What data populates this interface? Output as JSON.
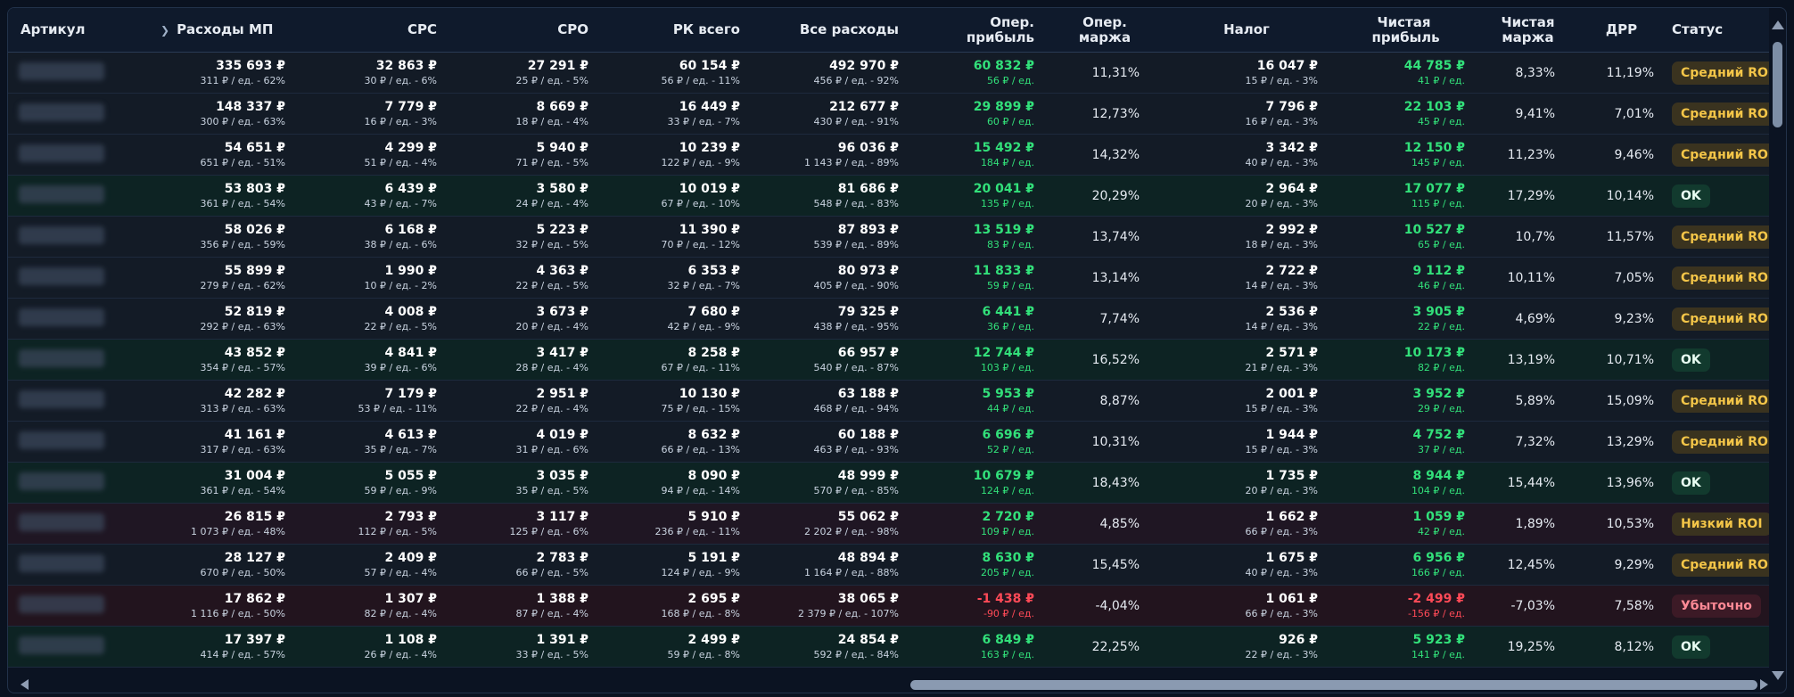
{
  "headers": {
    "sku": "Артикул",
    "mp_expenses": "Расходы МП",
    "cpc": "CPC",
    "cpo": "CPO",
    "rk_total": "РК всего",
    "all_expenses": "Все расходы",
    "op_profit": "Опер. прибыль",
    "op_margin": "Опер. маржа",
    "tax": "Налог",
    "net_profit": "Чистая прибыль",
    "net_margin": "Чистая маржа",
    "drr": "ДРР",
    "status": "Статус"
  },
  "rows": [
    {
      "mp": "335 693 ₽",
      "mp_s": "311 ₽ / ед. - 62%",
      "cpc": "32 863 ₽",
      "cpc_s": "30 ₽ / ед. - 6%",
      "cpo": "27 291 ₽",
      "cpo_s": "25 ₽ / ед. - 5%",
      "rk": "60 154 ₽",
      "rk_s": "56 ₽ / ед. - 11%",
      "all": "492 970 ₽",
      "all_s": "456 ₽ / ед. - 92%",
      "op": "60 832 ₽",
      "op_s": "56 ₽ / ед.",
      "opm": "11,31%",
      "tax": "16 047 ₽",
      "tax_s": "15 ₽ / ед. - 3%",
      "net": "44 785 ₽",
      "net_s": "41 ₽ / ед.",
      "netm": "8,33%",
      "drr": "11,19%",
      "status": "Средний ROI"
    },
    {
      "mp": "148 337 ₽",
      "mp_s": "300 ₽ / ед. - 63%",
      "cpc": "7 779 ₽",
      "cpc_s": "16 ₽ / ед. - 3%",
      "cpo": "8 669 ₽",
      "cpo_s": "18 ₽ / ед. - 4%",
      "rk": "16 449 ₽",
      "rk_s": "33 ₽ / ед. - 7%",
      "all": "212 677 ₽",
      "all_s": "430 ₽ / ед. - 91%",
      "op": "29 899 ₽",
      "op_s": "60 ₽ / ед.",
      "opm": "12,73%",
      "tax": "7 796 ₽",
      "tax_s": "16 ₽ / ед. - 3%",
      "net": "22 103 ₽",
      "net_s": "45 ₽ / ед.",
      "netm": "9,41%",
      "drr": "7,01%",
      "status": "Средний ROI"
    },
    {
      "mp": "54 651 ₽",
      "mp_s": "651 ₽ / ед. - 51%",
      "cpc": "4 299 ₽",
      "cpc_s": "51 ₽ / ед. - 4%",
      "cpo": "5 940 ₽",
      "cpo_s": "71 ₽ / ед. - 5%",
      "rk": "10 239 ₽",
      "rk_s": "122 ₽ / ед. - 9%",
      "all": "96 036 ₽",
      "all_s": "1 143 ₽ / ед. - 89%",
      "op": "15 492 ₽",
      "op_s": "184 ₽ / ед.",
      "opm": "14,32%",
      "tax": "3 342 ₽",
      "tax_s": "40 ₽ / ед. - 3%",
      "net": "12 150 ₽",
      "net_s": "145 ₽ / ед.",
      "netm": "11,23%",
      "drr": "9,46%",
      "status": "Средний ROI"
    },
    {
      "mp": "53 803 ₽",
      "mp_s": "361 ₽ / ед. - 54%",
      "cpc": "6 439 ₽",
      "cpc_s": "43 ₽ / ед. - 7%",
      "cpo": "3 580 ₽",
      "cpo_s": "24 ₽ / ед. - 4%",
      "rk": "10 019 ₽",
      "rk_s": "67 ₽ / ед. - 10%",
      "all": "81 686 ₽",
      "all_s": "548 ₽ / ед. - 83%",
      "op": "20 041 ₽",
      "op_s": "135 ₽ / ед.",
      "opm": "20,29%",
      "tax": "2 964 ₽",
      "tax_s": "20 ₽ / ед. - 3%",
      "net": "17 077 ₽",
      "net_s": "115 ₽ / ед.",
      "netm": "17,29%",
      "drr": "10,14%",
      "status": "OK"
    },
    {
      "mp": "58 026 ₽",
      "mp_s": "356 ₽ / ед. - 59%",
      "cpc": "6 168 ₽",
      "cpc_s": "38 ₽ / ед. - 6%",
      "cpo": "5 223 ₽",
      "cpo_s": "32 ₽ / ед. - 5%",
      "rk": "11 390 ₽",
      "rk_s": "70 ₽ / ед. - 12%",
      "all": "87 893 ₽",
      "all_s": "539 ₽ / ед. - 89%",
      "op": "13 519 ₽",
      "op_s": "83 ₽ / ед.",
      "opm": "13,74%",
      "tax": "2 992 ₽",
      "tax_s": "18 ₽ / ед. - 3%",
      "net": "10 527 ₽",
      "net_s": "65 ₽ / ед.",
      "netm": "10,7%",
      "drr": "11,57%",
      "status": "Средний ROI"
    },
    {
      "mp": "55 899 ₽",
      "mp_s": "279 ₽ / ед. - 62%",
      "cpc": "1 990 ₽",
      "cpc_s": "10 ₽ / ед. - 2%",
      "cpo": "4 363 ₽",
      "cpo_s": "22 ₽ / ед. - 5%",
      "rk": "6 353 ₽",
      "rk_s": "32 ₽ / ед. - 7%",
      "all": "80 973 ₽",
      "all_s": "405 ₽ / ед. - 90%",
      "op": "11 833 ₽",
      "op_s": "59 ₽ / ед.",
      "opm": "13,14%",
      "tax": "2 722 ₽",
      "tax_s": "14 ₽ / ед. - 3%",
      "net": "9 112 ₽",
      "net_s": "46 ₽ / ед.",
      "netm": "10,11%",
      "drr": "7,05%",
      "status": "Средний ROI"
    },
    {
      "mp": "52 819 ₽",
      "mp_s": "292 ₽ / ед. - 63%",
      "cpc": "4 008 ₽",
      "cpc_s": "22 ₽ / ед. - 5%",
      "cpo": "3 673 ₽",
      "cpo_s": "20 ₽ / ед. - 4%",
      "rk": "7 680 ₽",
      "rk_s": "42 ₽ / ед. - 9%",
      "all": "79 325 ₽",
      "all_s": "438 ₽ / ед. - 95%",
      "op": "6 441 ₽",
      "op_s": "36 ₽ / ед.",
      "opm": "7,74%",
      "tax": "2 536 ₽",
      "tax_s": "14 ₽ / ед. - 3%",
      "net": "3 905 ₽",
      "net_s": "22 ₽ / ед.",
      "netm": "4,69%",
      "drr": "9,23%",
      "status": "Средний ROI"
    },
    {
      "mp": "43 852 ₽",
      "mp_s": "354 ₽ / ед. - 57%",
      "cpc": "4 841 ₽",
      "cpc_s": "39 ₽ / ед. - 6%",
      "cpo": "3 417 ₽",
      "cpo_s": "28 ₽ / ед. - 4%",
      "rk": "8 258 ₽",
      "rk_s": "67 ₽ / ед. - 11%",
      "all": "66 957 ₽",
      "all_s": "540 ₽ / ед. - 87%",
      "op": "12 744 ₽",
      "op_s": "103 ₽ / ед.",
      "opm": "16,52%",
      "tax": "2 571 ₽",
      "tax_s": "21 ₽ / ед. - 3%",
      "net": "10 173 ₽",
      "net_s": "82 ₽ / ед.",
      "netm": "13,19%",
      "drr": "10,71%",
      "status": "OK"
    },
    {
      "mp": "42 282 ₽",
      "mp_s": "313 ₽ / ед. - 63%",
      "cpc": "7 179 ₽",
      "cpc_s": "53 ₽ / ед. - 11%",
      "cpo": "2 951 ₽",
      "cpo_s": "22 ₽ / ед. - 4%",
      "rk": "10 130 ₽",
      "rk_s": "75 ₽ / ед. - 15%",
      "all": "63 188 ₽",
      "all_s": "468 ₽ / ед. - 94%",
      "op": "5 953 ₽",
      "op_s": "44 ₽ / ед.",
      "opm": "8,87%",
      "tax": "2 001 ₽",
      "tax_s": "15 ₽ / ед. - 3%",
      "net": "3 952 ₽",
      "net_s": "29 ₽ / ед.",
      "netm": "5,89%",
      "drr": "15,09%",
      "status": "Средний ROI"
    },
    {
      "mp": "41 161 ₽",
      "mp_s": "317 ₽ / ед. - 63%",
      "cpc": "4 613 ₽",
      "cpc_s": "35 ₽ / ед. - 7%",
      "cpo": "4 019 ₽",
      "cpo_s": "31 ₽ / ед. - 6%",
      "rk": "8 632 ₽",
      "rk_s": "66 ₽ / ед. - 13%",
      "all": "60 188 ₽",
      "all_s": "463 ₽ / ед. - 93%",
      "op": "6 696 ₽",
      "op_s": "52 ₽ / ед.",
      "opm": "10,31%",
      "tax": "1 944 ₽",
      "tax_s": "15 ₽ / ед. - 3%",
      "net": "4 752 ₽",
      "net_s": "37 ₽ / ед.",
      "netm": "7,32%",
      "drr": "13,29%",
      "status": "Средний ROI"
    },
    {
      "mp": "31 004 ₽",
      "mp_s": "361 ₽ / ед. - 54%",
      "cpc": "5 055 ₽",
      "cpc_s": "59 ₽ / ед. - 9%",
      "cpo": "3 035 ₽",
      "cpo_s": "35 ₽ / ед. - 5%",
      "rk": "8 090 ₽",
      "rk_s": "94 ₽ / ед. - 14%",
      "all": "48 999 ₽",
      "all_s": "570 ₽ / ед. - 85%",
      "op": "10 679 ₽",
      "op_s": "124 ₽ / ед.",
      "opm": "18,43%",
      "tax": "1 735 ₽",
      "tax_s": "20 ₽ / ед. - 3%",
      "net": "8 944 ₽",
      "net_s": "104 ₽ / ед.",
      "netm": "15,44%",
      "drr": "13,96%",
      "status": "OK"
    },
    {
      "mp": "26 815 ₽",
      "mp_s": "1 073 ₽ / ед. - 48%",
      "cpc": "2 793 ₽",
      "cpc_s": "112 ₽ / ед. - 5%",
      "cpo": "3 117 ₽",
      "cpo_s": "125 ₽ / ед. - 6%",
      "rk": "5 910 ₽",
      "rk_s": "236 ₽ / ед. - 11%",
      "all": "55 062 ₽",
      "all_s": "2 202 ₽ / ед. - 98%",
      "op": "2 720 ₽",
      "op_s": "109 ₽ / ед.",
      "opm": "4,85%",
      "tax": "1 662 ₽",
      "tax_s": "66 ₽ / ед. - 3%",
      "net": "1 059 ₽",
      "net_s": "42 ₽ / ед.",
      "netm": "1,89%",
      "drr": "10,53%",
      "status": "Низкий ROI"
    },
    {
      "mp": "28 127 ₽",
      "mp_s": "670 ₽ / ед. - 50%",
      "cpc": "2 409 ₽",
      "cpc_s": "57 ₽ / ед. - 4%",
      "cpo": "2 783 ₽",
      "cpo_s": "66 ₽ / ед. - 5%",
      "rk": "5 191 ₽",
      "rk_s": "124 ₽ / ед. - 9%",
      "all": "48 894 ₽",
      "all_s": "1 164 ₽ / ед. - 88%",
      "op": "8 630 ₽",
      "op_s": "205 ₽ / ед.",
      "opm": "15,45%",
      "tax": "1 675 ₽",
      "tax_s": "40 ₽ / ед. - 3%",
      "net": "6 956 ₽",
      "net_s": "166 ₽ / ед.",
      "netm": "12,45%",
      "drr": "9,29%",
      "status": "Средний ROI"
    },
    {
      "mp": "17 862 ₽",
      "mp_s": "1 116 ₽ / ед. - 50%",
      "cpc": "1 307 ₽",
      "cpc_s": "82 ₽ / ед. - 4%",
      "cpo": "1 388 ₽",
      "cpo_s": "87 ₽ / ед. - 4%",
      "rk": "2 695 ₽",
      "rk_s": "168 ₽ / ед. - 8%",
      "all": "38 065 ₽",
      "all_s": "2 379 ₽ / ед. - 107%",
      "op": "-1 438 ₽",
      "op_s": "-90 ₽ / ед.",
      "opm": "-4,04%",
      "tax": "1 061 ₽",
      "tax_s": "66 ₽ / ед. - 3%",
      "net": "-2 499 ₽",
      "net_s": "-156 ₽ / ед.",
      "netm": "-7,03%",
      "drr": "7,58%",
      "status": "Убыточно"
    },
    {
      "mp": "17 397 ₽",
      "mp_s": "414 ₽ / ед. - 57%",
      "cpc": "1 108 ₽",
      "cpc_s": "26 ₽ / ед. - 4%",
      "cpo": "1 391 ₽",
      "cpo_s": "33 ₽ / ед. - 5%",
      "rk": "2 499 ₽",
      "rk_s": "59 ₽ / ед. - 8%",
      "all": "24 854 ₽",
      "all_s": "592 ₽ / ед. - 84%",
      "op": "6 849 ₽",
      "op_s": "163 ₽ / ед.",
      "opm": "22,25%",
      "tax": "926 ₽",
      "tax_s": "22 ₽ / ед. - 3%",
      "net": "5 923 ₽",
      "net_s": "141 ₽ / ед.",
      "netm": "19,25%",
      "drr": "8,12%",
      "status": "OK"
    }
  ]
}
